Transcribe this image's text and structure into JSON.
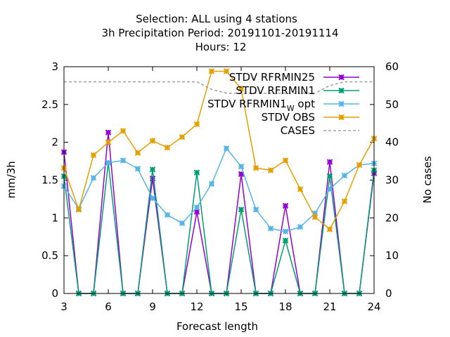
{
  "chart_data": {
    "type": "line",
    "title_lines": [
      "Selection: ALL using     4 stations",
      "3h Precipitation   Period: 20191101-20191114",
      "Hours:  12"
    ],
    "xlabel": "Forecast length",
    "ylabel": "mm/3h",
    "y2label": "No cases",
    "xlim": [
      3,
      24
    ],
    "ylim": [
      0,
      3
    ],
    "y2lim": [
      0,
      60
    ],
    "xticks": [
      3,
      6,
      9,
      12,
      15,
      18,
      21,
      24
    ],
    "yticks": [
      0,
      0.5,
      1,
      1.5,
      2,
      2.5,
      3
    ],
    "y2ticks": [
      0,
      10,
      20,
      30,
      40,
      50,
      60
    ],
    "x": [
      3,
      4,
      5,
      6,
      7,
      8,
      9,
      10,
      11,
      12,
      13,
      14,
      15,
      16,
      17,
      18,
      19,
      20,
      21,
      22,
      23,
      24
    ],
    "legend_position": "top-right",
    "series": [
      {
        "name": "STDV RFRMIN25",
        "color": "#9400d3",
        "marker": "x",
        "axis": "y",
        "values": [
          1.87,
          0,
          0,
          2.13,
          0,
          0,
          1.52,
          0,
          0,
          1.08,
          0,
          0,
          1.58,
          0,
          0,
          1.16,
          0,
          0,
          1.74,
          0,
          0,
          1.59
        ]
      },
      {
        "name": "STDV RFRMIN1",
        "color": "#009e73",
        "marker": "x",
        "axis": "y",
        "values": [
          1.55,
          0,
          0,
          1.73,
          0,
          0,
          1.64,
          0,
          0,
          1.6,
          0,
          0,
          1.11,
          0,
          0,
          0.7,
          0,
          0,
          1.55,
          0,
          0,
          1.63
        ]
      },
      {
        "name": "STDV RFRMIN1",
        "name_subscript": "W",
        "name_suffix": " opt",
        "color": "#56b4e9",
        "marker": "x",
        "axis": "y",
        "values": [
          1.42,
          1.12,
          1.53,
          1.73,
          1.76,
          1.65,
          1.26,
          1.04,
          0.93,
          1.14,
          1.45,
          1.92,
          1.68,
          1.11,
          0.86,
          0.82,
          0.88,
          1.06,
          1.38,
          1.56,
          1.7,
          1.72
        ]
      },
      {
        "name": "STDV OBS",
        "color": "#e69f00",
        "marker": "x",
        "axis": "y",
        "values": [
          1.66,
          1.11,
          1.83,
          2.0,
          2.15,
          1.86,
          2.02,
          1.93,
          2.07,
          2.24,
          2.94,
          2.94,
          2.71,
          1.66,
          1.63,
          1.76,
          1.38,
          1.01,
          0.85,
          1.22,
          1.7,
          2.05
        ]
      },
      {
        "name": "CASES",
        "color": "#a0a0a0",
        "dashed": true,
        "axis": "y2",
        "values": [
          56,
          56,
          56,
          56,
          56,
          56,
          56,
          56,
          56,
          56,
          54,
          53,
          53,
          53,
          53,
          53,
          53,
          53,
          55,
          56,
          56,
          56
        ]
      }
    ]
  }
}
